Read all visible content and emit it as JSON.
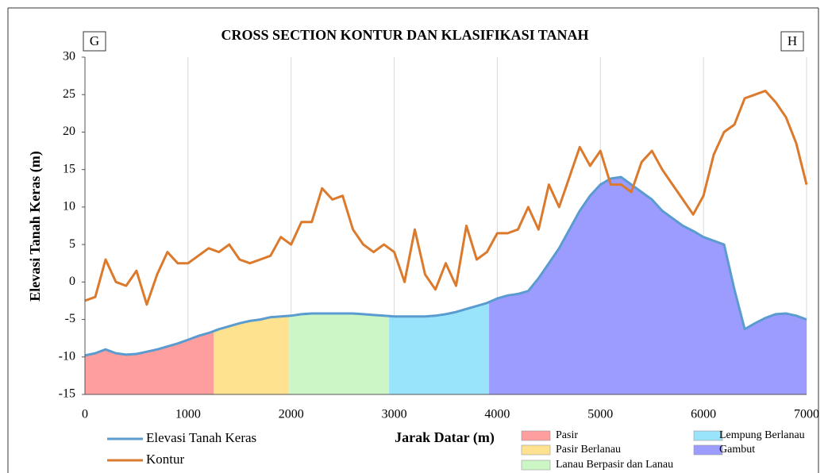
{
  "chart_data": {
    "type": "line",
    "title": "CROSS SECTION KONTUR DAN KLASIFIKASI TANAH",
    "corner_labels": [
      "G",
      "H"
    ],
    "xlabel": "Jarak Datar (m)",
    "ylabel": "Elevasi Tanah Keras (m)",
    "xlim": [
      0,
      7000
    ],
    "ylim": [
      -15,
      30
    ],
    "xticks": [
      0,
      1000,
      2000,
      3000,
      4000,
      5000,
      6000,
      7000
    ],
    "yticks": [
      -15,
      -10,
      -5,
      0,
      5,
      10,
      15,
      20,
      25,
      30
    ],
    "grid": "x",
    "x": [
      0,
      100,
      200,
      300,
      400,
      500,
      600,
      700,
      800,
      900,
      1000,
      1100,
      1200,
      1300,
      1400,
      1500,
      1600,
      1700,
      1800,
      1900,
      2000,
      2100,
      2200,
      2300,
      2400,
      2500,
      2600,
      2700,
      2800,
      2900,
      3000,
      3100,
      3200,
      3300,
      3400,
      3500,
      3600,
      3700,
      3800,
      3900,
      4000,
      4100,
      4200,
      4300,
      4400,
      4500,
      4600,
      4700,
      4800,
      4900,
      5000,
      5100,
      5200,
      5300,
      5400,
      5500,
      5600,
      5700,
      5800,
      5900,
      6000,
      6100,
      6200,
      6300,
      6400,
      6500,
      6600,
      6700,
      6800,
      6900,
      7000
    ],
    "series": [
      {
        "name": "Elevasi Tanah Keras",
        "color": "#5a9bd0",
        "values": [
          -9.8,
          -9.5,
          -9,
          -9.5,
          -9.7,
          -9.6,
          -9.3,
          -9,
          -8.6,
          -8.2,
          -7.7,
          -7.2,
          -6.8,
          -6.3,
          -5.9,
          -5.5,
          -5.2,
          -5,
          -4.7,
          -4.6,
          -4.5,
          -4.3,
          -4.2,
          -4.2,
          -4.2,
          -4.2,
          -4.2,
          -4.3,
          -4.4,
          -4.5,
          -4.6,
          -4.6,
          -4.6,
          -4.6,
          -4.5,
          -4.3,
          -4,
          -3.6,
          -3.2,
          -2.8,
          -2.2,
          -1.8,
          -1.6,
          -1.2,
          0.5,
          2.5,
          4.5,
          7,
          9.5,
          11.5,
          13,
          13.8,
          14,
          13,
          12,
          11,
          9.5,
          8.5,
          7.5,
          6.8,
          6,
          5.5,
          5,
          -1,
          -6.3,
          -5.5,
          -4.8,
          -4.3,
          -4.2,
          -4.5,
          -5
        ]
      },
      {
        "name": "Kontur",
        "color": "#db7a2c",
        "values": [
          -2.5,
          -2,
          3,
          0,
          -0.5,
          1.5,
          -3,
          1,
          4,
          2.5,
          2.5,
          3.5,
          4.5,
          4,
          5,
          3,
          2.5,
          3,
          3.5,
          6,
          5,
          8,
          8,
          12.5,
          11,
          11.5,
          7,
          5,
          4,
          5,
          4,
          0,
          7,
          1,
          -1,
          2.5,
          -0.5,
          7.5,
          3,
          4,
          6.5,
          6.5,
          7,
          10,
          7,
          13,
          10,
          14,
          18,
          15.5,
          17.5,
          13,
          13,
          12,
          16,
          17.5,
          15,
          13,
          11,
          9,
          11.5,
          17,
          20,
          21,
          24.5,
          25,
          25.5,
          24,
          22,
          18.5,
          13
        ]
      }
    ],
    "zones": [
      {
        "name": "Pasir",
        "color": "#ff9e9e",
        "start": 0,
        "end": 1250
      },
      {
        "name": "Pasir Berlanau",
        "color": "#ffe28f",
        "start": 1250,
        "end": 1980
      },
      {
        "name": "Lanau Berpasir dan Lanau",
        "color": "#cdf6c6",
        "start": 1980,
        "end": 2950
      },
      {
        "name": "Lempung Berlanau",
        "color": "#9ae4fb",
        "start": 2950,
        "end": 3920
      },
      {
        "name": "Gambut",
        "color": "#9c9cff",
        "start": 3920,
        "end": 7000
      }
    ]
  }
}
